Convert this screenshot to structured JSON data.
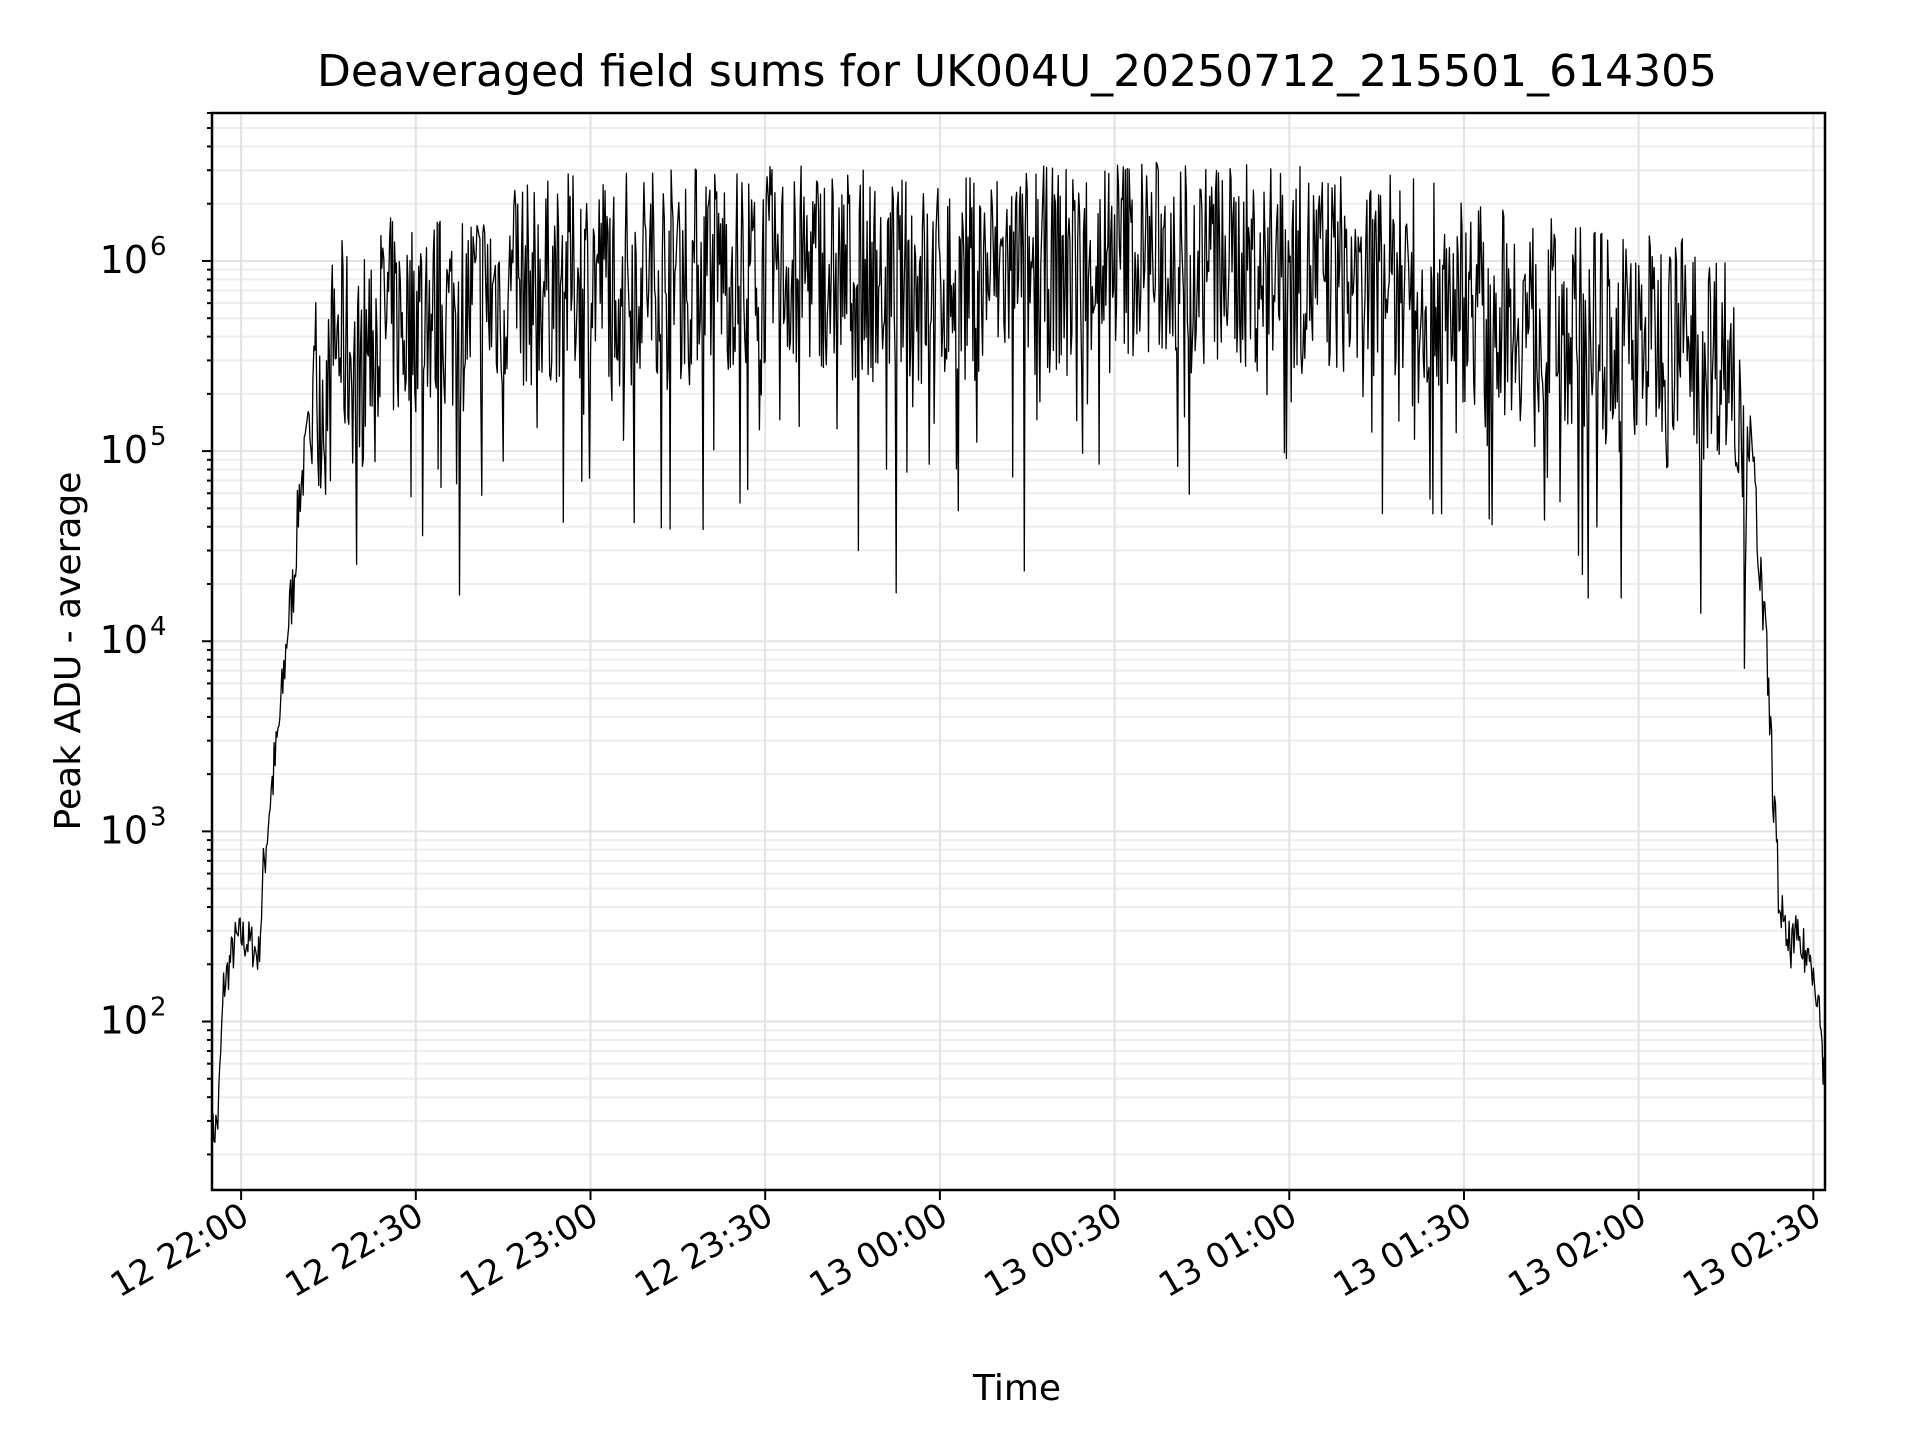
{
  "chart_data": {
    "type": "line",
    "title": "Deaveraged field sums for UK004U_20250712_215501_614305",
    "xlabel": "Time",
    "ylabel": "Peak ADU - average",
    "yscale": "log",
    "grid": true,
    "legend": "none",
    "line_color": "#000000",
    "xlim": [
      "2025-07-12T21:55:00",
      "2025-07-13T02:32:00"
    ],
    "ylim": [
      13,
      6000000
    ],
    "x_tick_labels": [
      "12 22:00",
      "12 22:30",
      "12 23:00",
      "12 23:30",
      "13 00:00",
      "13 00:30",
      "13 01:00",
      "13 01:30",
      "13 02:00",
      "13 02:30"
    ],
    "x_ticks": [
      "2025-07-12T22:00:00",
      "2025-07-12T22:30:00",
      "2025-07-12T23:00:00",
      "2025-07-12T23:30:00",
      "2025-07-13T00:00:00",
      "2025-07-13T00:30:00",
      "2025-07-13T01:00:00",
      "2025-07-13T01:30:00",
      "2025-07-13T02:00:00",
      "2025-07-13T02:30:00"
    ],
    "y_ticks": [
      {
        "base": "10",
        "exp": "2",
        "value": 100
      },
      {
        "base": "10",
        "exp": "3",
        "value": 1000
      },
      {
        "base": "10",
        "exp": "4",
        "value": 10000
      },
      {
        "base": "10",
        "exp": "5",
        "value": 100000
      },
      {
        "base": "10",
        "exp": "6",
        "value": 1000000
      }
    ],
    "series": [
      {
        "x": [
          "2025-07-12T21:55:00",
          "2025-07-12T21:56:00",
          "2025-07-12T21:57:00",
          "2025-07-12T21:58:00",
          "2025-07-12T21:59:00",
          "2025-07-12T22:00:00",
          "2025-07-12T22:02:00",
          "2025-07-12T22:03:00",
          "2025-07-12T22:04:00",
          "2025-07-12T22:05:00",
          "2025-07-12T22:06:00",
          "2025-07-12T22:07:00",
          "2025-07-12T22:08:00",
          "2025-07-12T22:09:00",
          "2025-07-12T22:10:00",
          "2025-07-12T22:11:00",
          "2025-07-12T22:12:00",
          "2025-07-12T22:13:00",
          "2025-07-12T22:14:00",
          "2025-07-12T22:15:00",
          "2025-07-12T22:16:00",
          "2025-07-12T22:18:00",
          "2025-07-12T22:20:00",
          "2025-07-12T22:22:00",
          "2025-07-12T22:25:00",
          "2025-07-12T22:28:00",
          "2025-07-12T22:30:00",
          "2025-07-12T22:35:00",
          "2025-07-12T22:40:00",
          "2025-07-12T22:45:00",
          "2025-07-12T22:50:00",
          "2025-07-12T22:55:00",
          "2025-07-12T23:00:00",
          "2025-07-12T23:10:00",
          "2025-07-12T23:20:00",
          "2025-07-12T23:30:00",
          "2025-07-12T23:40:00",
          "2025-07-12T23:50:00",
          "2025-07-13T00:00:00",
          "2025-07-13T00:10:00",
          "2025-07-13T00:20:00",
          "2025-07-13T00:30:00",
          "2025-07-13T00:40:00",
          "2025-07-13T00:50:00",
          "2025-07-13T01:00:00",
          "2025-07-13T01:10:00",
          "2025-07-13T01:20:00",
          "2025-07-13T01:30:00",
          "2025-07-13T01:40:00",
          "2025-07-13T01:50:00",
          "2025-07-13T02:00:00",
          "2025-07-13T02:05:00",
          "2025-07-13T02:10:00",
          "2025-07-13T02:15:00",
          "2025-07-13T02:17:00",
          "2025-07-13T02:18:00",
          "2025-07-13T02:19:00",
          "2025-07-13T02:20:00",
          "2025-07-13T02:21:00",
          "2025-07-13T02:22:00",
          "2025-07-13T02:23:00",
          "2025-07-13T02:24:00",
          "2025-07-13T02:25:00",
          "2025-07-13T02:26:00",
          "2025-07-13T02:27:00",
          "2025-07-13T02:28:00",
          "2025-07-13T02:29:00",
          "2025-07-13T02:30:00",
          "2025-07-13T02:31:00",
          "2025-07-13T02:32:00"
        ],
        "y": [
          25,
          30,
          150,
          200,
          260,
          280,
          250,
          220,
          700,
          1500,
          2500,
          5000,
          12000,
          20000,
          60000,
          90000,
          150000,
          250000,
          200000,
          170000,
          400000,
          350000,
          250000,
          400000,
          500000,
          450000,
          550000,
          500000,
          600000,
          700000,
          750000,
          800000,
          850000,
          900000,
          950000,
          900000,
          950000,
          800000,
          750000,
          900000,
          900000,
          1100000,
          1000000,
          950000,
          900000,
          850000,
          800000,
          650000,
          500000,
          450000,
          400000,
          420000,
          380000,
          320000,
          250000,
          200000,
          120000,
          60000,
          20000,
          8000,
          2000,
          500,
          280,
          250,
          270,
          240,
          220,
          200,
          120,
          45
        ]
      }
    ]
  }
}
